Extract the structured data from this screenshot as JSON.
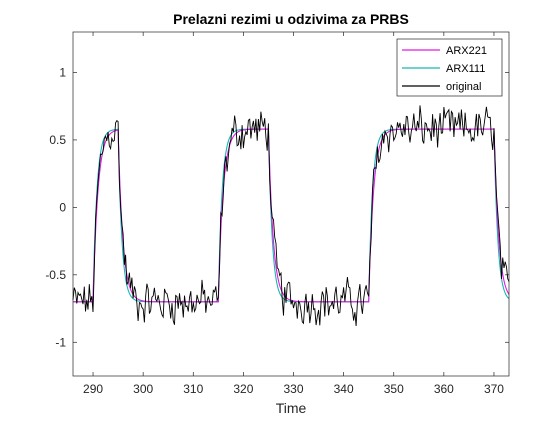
{
  "chart_data": {
    "type": "line",
    "title": "Prelazni rezimi u odzivima za PRBS",
    "xlabel": "Time",
    "ylabel": "",
    "xlim": [
      286,
      373
    ],
    "ylim": [
      -1.25,
      1.3
    ],
    "x_ticks": [
      290,
      300,
      310,
      320,
      330,
      340,
      350,
      360,
      370
    ],
    "y_ticks": [
      -1,
      -0.5,
      0,
      0.5,
      1
    ],
    "x_tick_labels": [
      "290",
      "300",
      "310",
      "320",
      "330",
      "340",
      "350",
      "360",
      "370"
    ],
    "y_tick_labels": [
      "-1",
      "-0.5",
      "0",
      "0.5",
      "1"
    ],
    "grid": false,
    "legend_position": "top-right",
    "steps": {
      "low": -0.7,
      "high": 0.58,
      "rise_times": [
        290,
        315,
        345
      ],
      "fall_times": [
        295,
        325,
        370
      ]
    },
    "series": [
      {
        "name": "ARX221",
        "color": "#e01be0",
        "time_constant": 0.95,
        "noise_amplitude": 0
      },
      {
        "name": "ARX111",
        "color": "#17b8b0",
        "time_constant": 0.75,
        "noise_amplitude": 0
      },
      {
        "name": "original",
        "color": "#000000",
        "time_constant": 0.95,
        "noise_amplitude": 0.12
      }
    ]
  }
}
